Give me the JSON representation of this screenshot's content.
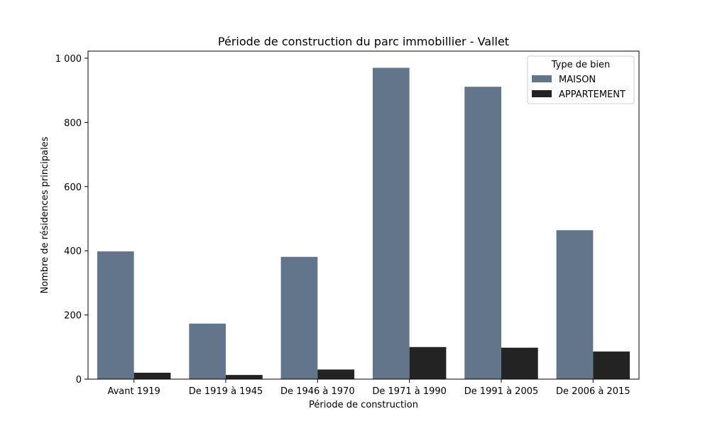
{
  "chart_data": {
    "type": "bar",
    "title": "Période de construction du parc immobillier - Vallet",
    "xlabel": "Période de construction",
    "ylabel": "Nombre de résidences principales",
    "categories": [
      "Avant 1919",
      "De 1919 à 1945",
      "De 1946 à 1970",
      "De 1971 à 1990",
      "De 1991 à 2005",
      "De 2006 à 2015"
    ],
    "series": [
      {
        "name": "MAISON",
        "color": "#63758b",
        "values": [
          398,
          173,
          381,
          970,
          911,
          464
        ]
      },
      {
        "name": "APPARTEMENT",
        "color": "#232323",
        "values": [
          20,
          13,
          30,
          100,
          98,
          86
        ]
      }
    ],
    "ylim": [
      0,
      1022
    ],
    "yticks": [
      0,
      200,
      400,
      600,
      800,
      1000
    ],
    "ytick_labels": [
      "0",
      "200",
      "400",
      "600",
      "800",
      "1 000"
    ],
    "legend": {
      "title": "Type de bien",
      "placement": "top-right"
    },
    "grid": false
  }
}
